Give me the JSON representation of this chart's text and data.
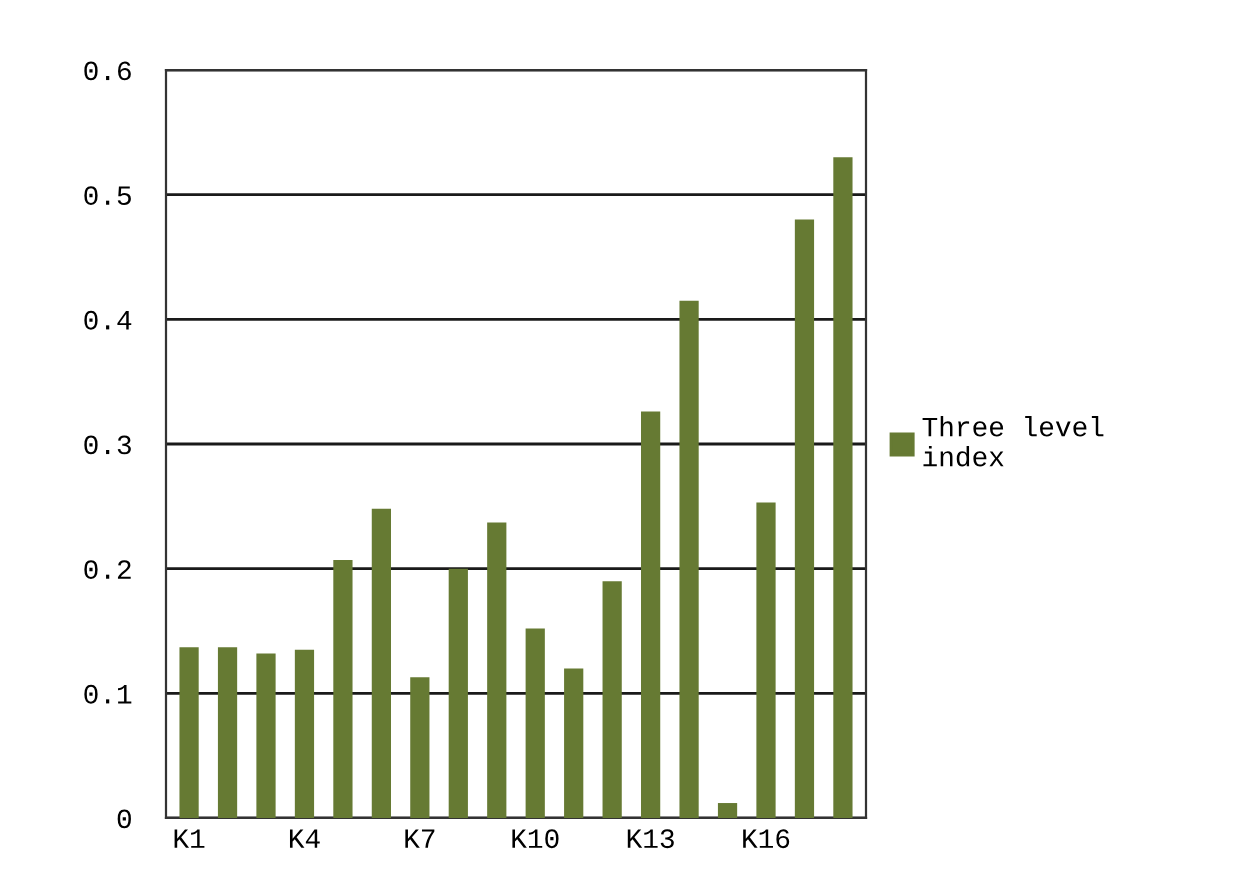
{
  "chart_data": {
    "type": "bar",
    "categories": [
      "K1",
      null,
      null,
      "K4",
      null,
      null,
      "K7",
      null,
      null,
      "K10",
      null,
      null,
      "K13",
      null,
      null,
      "K16",
      null,
      null
    ],
    "series": [
      {
        "name": "Three level index",
        "color": "#667a33",
        "values": [
          0.137,
          0.137,
          0.132,
          0.135,
          0.207,
          0.248,
          0.113,
          0.2,
          0.237,
          0.152,
          0.12,
          0.19,
          0.326,
          0.415,
          0.012,
          0.253,
          0.48,
          0.53
        ]
      }
    ],
    "ylim": [
      0,
      0.6
    ],
    "yticks": [
      0,
      0.1,
      0.2,
      0.3,
      0.4,
      0.5,
      0.6
    ],
    "grid": "y",
    "legend": "right"
  }
}
